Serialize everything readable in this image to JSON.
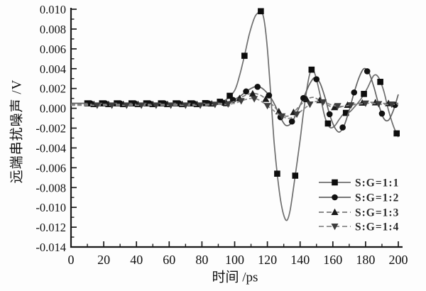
{
  "figure": {
    "xlabel": "时间 /ps",
    "ylabel": "远端串扰噪声 /V"
  },
  "colors": {
    "background": "#fdfdfd",
    "axis": "#1a1a1a",
    "text": "#111111",
    "legend_text": "#2b2b2b"
  },
  "chart_data": {
    "type": "line",
    "title": "",
    "xlabel": "时间 /ps",
    "ylabel": "远端串扰噪声 /V",
    "xlim": [
      0,
      200
    ],
    "ylim": [
      -0.014,
      0.01
    ],
    "grid": false,
    "legend_position": "lower-right",
    "x_tick_labels": [
      "0",
      "20",
      "40",
      "60",
      "80",
      "100",
      "120",
      "140",
      "160",
      "180",
      "200"
    ],
    "x_major_ticks": [
      0,
      20,
      40,
      60,
      80,
      100,
      120,
      140,
      160,
      180,
      200
    ],
    "x_minor_ticks": [
      10,
      30,
      50,
      70,
      90,
      110,
      130,
      150,
      170,
      190
    ],
    "y_tick_labels": [
      "0.010",
      "0.008",
      "0.006",
      "0.004",
      "0.002",
      "0.000",
      "-0.002",
      "-0.004",
      "-0.006",
      "-0.008",
      "-0.010",
      "-0.012",
      "-0.014"
    ],
    "y_major_ticks": [
      0.01,
      0.008,
      0.006,
      0.004,
      0.002,
      0.0,
      -0.002,
      -0.004,
      -0.006,
      -0.008,
      -0.01,
      -0.012,
      -0.014
    ],
    "y_minor_ticks": [
      0.009,
      0.007,
      0.005,
      0.003,
      0.001,
      -0.001,
      -0.003,
      -0.005,
      -0.007,
      -0.009,
      -0.011,
      -0.013
    ],
    "series": [
      {
        "name": "S:G=1:1",
        "marker": "square",
        "line_style": "solid",
        "line_color": "#6e6e6e",
        "marker_color": "#0d0d0d",
        "x": [
          0,
          10,
          20,
          30,
          40,
          50,
          60,
          70,
          80,
          90,
          95,
          100,
          103,
          106,
          109,
          112,
          114,
          116,
          118,
          120,
          122,
          124,
          126,
          128,
          130,
          132,
          134,
          137,
          140,
          142,
          145,
          147,
          149,
          152,
          155,
          158,
          161,
          164,
          167,
          170,
          173,
          177,
          181,
          185,
          188,
          191,
          194,
          197,
          200
        ],
        "y": [
          0.0005,
          0.0005,
          0.0005,
          0.0005,
          0.0005,
          0.0005,
          0.0005,
          0.0005,
          0.0005,
          0.0006,
          0.0009,
          0.0018,
          0.0033,
          0.0053,
          0.0075,
          0.0091,
          0.0096,
          0.0098,
          0.0089,
          0.006,
          0.0015,
          -0.0032,
          -0.0066,
          -0.0092,
          -0.0108,
          -0.0113,
          -0.0102,
          -0.0068,
          -0.0032,
          -0.0005,
          0.0028,
          0.0039,
          0.0035,
          0.0015,
          -0.0008,
          -0.0019,
          -0.0018,
          -0.0011,
          -0.0005,
          -0.0004,
          0.0001,
          0.0009,
          0.002,
          0.0033,
          0.0031,
          0.0018,
          -0.0002,
          -0.0018,
          -0.0029
        ],
        "marker_x": [
          10,
          19,
          28,
          37,
          46,
          55,
          64,
          73,
          82,
          91,
          97,
          106,
          116,
          126,
          137,
          147,
          157,
          168,
          179,
          189,
          199
        ]
      },
      {
        "name": "S:G=1:2",
        "marker": "circle",
        "line_style": "solid",
        "line_color": "#636363",
        "marker_color": "#111111",
        "x": [
          0,
          10,
          20,
          30,
          40,
          50,
          60,
          70,
          80,
          90,
          95,
          100,
          104,
          107,
          110,
          113,
          116,
          119,
          122,
          125,
          128,
          131,
          134,
          137,
          140,
          143,
          146,
          149,
          152,
          155,
          158,
          161,
          164,
          167,
          170,
          173,
          176,
          179,
          182,
          185,
          188,
          191,
          194,
          197,
          200
        ],
        "y": [
          0.0005,
          0.0005,
          0.0005,
          0.0005,
          0.0005,
          0.0005,
          0.0005,
          0.0005,
          0.0005,
          0.0005,
          0.0006,
          0.0009,
          0.0013,
          0.0017,
          0.002,
          0.0022,
          0.0021,
          0.0017,
          0.0011,
          0.0002,
          -0.0009,
          -0.0017,
          -0.0016,
          -0.0008,
          0.0003,
          0.0014,
          0.0025,
          0.0031,
          0.0026,
          0.0012,
          -0.0006,
          -0.0019,
          -0.0024,
          -0.0017,
          -0.0002,
          0.0016,
          0.0031,
          0.004,
          0.0036,
          0.0022,
          0.0004,
          -0.001,
          -0.0012,
          -0.0002,
          0.0014
        ],
        "marker_x": [
          12,
          21,
          30,
          39,
          48,
          57,
          66,
          75,
          84,
          93,
          99,
          107,
          114,
          121,
          128,
          135,
          142,
          150,
          158,
          166,
          173,
          181,
          190,
          198
        ]
      },
      {
        "name": "S:G=1:3",
        "marker": "triangle-up",
        "line_style": "dashed",
        "line_color": "#7a7a7a",
        "marker_color": "#1a1a1a",
        "x": [
          0,
          10,
          20,
          30,
          40,
          50,
          60,
          70,
          80,
          90,
          95,
          100,
          104,
          108,
          112,
          116,
          120,
          124,
          128,
          132,
          136,
          140,
          144,
          148,
          152,
          156,
          160,
          164,
          168,
          172,
          176,
          180,
          185,
          190,
          195,
          200
        ],
        "y": [
          0.0004,
          0.0004,
          0.0004,
          0.0004,
          0.0004,
          0.0004,
          0.0004,
          0.0004,
          0.0004,
          0.0005,
          0.0005,
          0.0007,
          0.0011,
          0.0014,
          0.0015,
          0.0013,
          0.0008,
          0.0002,
          -0.0005,
          -0.0008,
          -0.0004,
          0.0003,
          0.0009,
          0.0011,
          0.0008,
          0.0004,
          0.0001,
          0.0001,
          0.0003,
          0.0004,
          0.0005,
          0.0006,
          0.0006,
          0.0005,
          0.0005,
          0.0005
        ],
        "marker_x": [
          14,
          23,
          32,
          41,
          50,
          59,
          68,
          77,
          86,
          95,
          103,
          111,
          119,
          127,
          136,
          144,
          152,
          161,
          169,
          178,
          186,
          194
        ]
      },
      {
        "name": "S:G=1:4",
        "marker": "triangle-down",
        "line_style": "dashed",
        "line_color": "#8a8a8a",
        "marker_color": "#3d3d3d",
        "x": [
          0,
          10,
          20,
          30,
          40,
          50,
          60,
          70,
          80,
          90,
          95,
          100,
          105,
          110,
          114,
          118,
          122,
          126,
          130,
          134,
          138,
          142,
          146,
          150,
          155,
          160,
          165,
          170,
          175,
          180,
          185,
          190,
          195,
          200
        ],
        "y": [
          0.0003,
          0.0003,
          0.0003,
          0.0003,
          0.0003,
          0.0003,
          0.0003,
          0.0003,
          0.0003,
          0.0004,
          0.0004,
          0.0005,
          0.0008,
          0.001,
          0.0009,
          0.0005,
          0.0,
          -0.0005,
          -0.0009,
          -0.001,
          -0.0006,
          -0.0001,
          0.0004,
          0.0007,
          0.0006,
          0.0003,
          0.0002,
          0.0003,
          0.0004,
          0.0005,
          0.0005,
          0.0004,
          0.0004,
          0.0004
        ],
        "marker_x": [
          16,
          25,
          34,
          43,
          52,
          61,
          70,
          79,
          88,
          96,
          104,
          112,
          120,
          129,
          138,
          146,
          154,
          163,
          171,
          180,
          188,
          196
        ]
      }
    ]
  }
}
